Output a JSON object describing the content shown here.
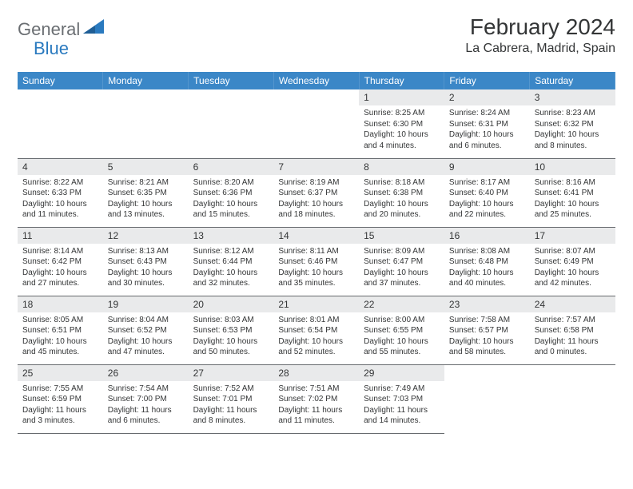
{
  "brand": {
    "part1": "General",
    "part2": "Blue"
  },
  "title": "February 2024",
  "location": "La Cabrera, Madrid, Spain",
  "colors": {
    "header_bg": "#3b87c7",
    "header_text": "#ffffff",
    "daynum_bg": "#e9eaeb",
    "body_text": "#333536",
    "row_border": "#666a6e",
    "brand_gray": "#6a6e72",
    "brand_blue": "#2a7abf"
  },
  "day_names": [
    "Sunday",
    "Monday",
    "Tuesday",
    "Wednesday",
    "Thursday",
    "Friday",
    "Saturday"
  ],
  "weeks": [
    [
      null,
      null,
      null,
      null,
      {
        "n": "1",
        "sr": "8:25 AM",
        "ss": "6:30 PM",
        "dl": "10 hours and 4 minutes."
      },
      {
        "n": "2",
        "sr": "8:24 AM",
        "ss": "6:31 PM",
        "dl": "10 hours and 6 minutes."
      },
      {
        "n": "3",
        "sr": "8:23 AM",
        "ss": "6:32 PM",
        "dl": "10 hours and 8 minutes."
      }
    ],
    [
      {
        "n": "4",
        "sr": "8:22 AM",
        "ss": "6:33 PM",
        "dl": "10 hours and 11 minutes."
      },
      {
        "n": "5",
        "sr": "8:21 AM",
        "ss": "6:35 PM",
        "dl": "10 hours and 13 minutes."
      },
      {
        "n": "6",
        "sr": "8:20 AM",
        "ss": "6:36 PM",
        "dl": "10 hours and 15 minutes."
      },
      {
        "n": "7",
        "sr": "8:19 AM",
        "ss": "6:37 PM",
        "dl": "10 hours and 18 minutes."
      },
      {
        "n": "8",
        "sr": "8:18 AM",
        "ss": "6:38 PM",
        "dl": "10 hours and 20 minutes."
      },
      {
        "n": "9",
        "sr": "8:17 AM",
        "ss": "6:40 PM",
        "dl": "10 hours and 22 minutes."
      },
      {
        "n": "10",
        "sr": "8:16 AM",
        "ss": "6:41 PM",
        "dl": "10 hours and 25 minutes."
      }
    ],
    [
      {
        "n": "11",
        "sr": "8:14 AM",
        "ss": "6:42 PM",
        "dl": "10 hours and 27 minutes."
      },
      {
        "n": "12",
        "sr": "8:13 AM",
        "ss": "6:43 PM",
        "dl": "10 hours and 30 minutes."
      },
      {
        "n": "13",
        "sr": "8:12 AM",
        "ss": "6:44 PM",
        "dl": "10 hours and 32 minutes."
      },
      {
        "n": "14",
        "sr": "8:11 AM",
        "ss": "6:46 PM",
        "dl": "10 hours and 35 minutes."
      },
      {
        "n": "15",
        "sr": "8:09 AM",
        "ss": "6:47 PM",
        "dl": "10 hours and 37 minutes."
      },
      {
        "n": "16",
        "sr": "8:08 AM",
        "ss": "6:48 PM",
        "dl": "10 hours and 40 minutes."
      },
      {
        "n": "17",
        "sr": "8:07 AM",
        "ss": "6:49 PM",
        "dl": "10 hours and 42 minutes."
      }
    ],
    [
      {
        "n": "18",
        "sr": "8:05 AM",
        "ss": "6:51 PM",
        "dl": "10 hours and 45 minutes."
      },
      {
        "n": "19",
        "sr": "8:04 AM",
        "ss": "6:52 PM",
        "dl": "10 hours and 47 minutes."
      },
      {
        "n": "20",
        "sr": "8:03 AM",
        "ss": "6:53 PM",
        "dl": "10 hours and 50 minutes."
      },
      {
        "n": "21",
        "sr": "8:01 AM",
        "ss": "6:54 PM",
        "dl": "10 hours and 52 minutes."
      },
      {
        "n": "22",
        "sr": "8:00 AM",
        "ss": "6:55 PM",
        "dl": "10 hours and 55 minutes."
      },
      {
        "n": "23",
        "sr": "7:58 AM",
        "ss": "6:57 PM",
        "dl": "10 hours and 58 minutes."
      },
      {
        "n": "24",
        "sr": "7:57 AM",
        "ss": "6:58 PM",
        "dl": "11 hours and 0 minutes."
      }
    ],
    [
      {
        "n": "25",
        "sr": "7:55 AM",
        "ss": "6:59 PM",
        "dl": "11 hours and 3 minutes."
      },
      {
        "n": "26",
        "sr": "7:54 AM",
        "ss": "7:00 PM",
        "dl": "11 hours and 6 minutes."
      },
      {
        "n": "27",
        "sr": "7:52 AM",
        "ss": "7:01 PM",
        "dl": "11 hours and 8 minutes."
      },
      {
        "n": "28",
        "sr": "7:51 AM",
        "ss": "7:02 PM",
        "dl": "11 hours and 11 minutes."
      },
      {
        "n": "29",
        "sr": "7:49 AM",
        "ss": "7:03 PM",
        "dl": "11 hours and 14 minutes."
      },
      null,
      null
    ]
  ],
  "labels": {
    "sunrise": "Sunrise:",
    "sunset": "Sunset:",
    "daylight": "Daylight:"
  }
}
